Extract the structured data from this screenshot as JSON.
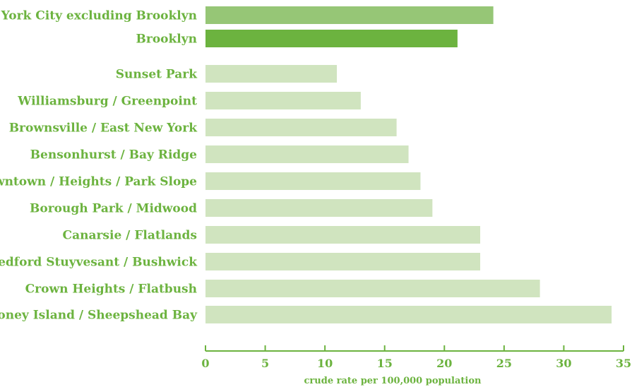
{
  "chart_data": {
    "type": "bar",
    "orientation": "horizontal",
    "xlabel": "crude rate per 100,000 population",
    "xlim": [
      0,
      35
    ],
    "xticks": [
      0,
      5,
      10,
      15,
      20,
      25,
      30,
      35
    ],
    "grid": false,
    "categories": [
      "New York City excluding Brooklyn",
      "Brooklyn",
      "Sunset Park",
      "Williamsburg / Greenpoint",
      "Brownsville / East New York",
      "Bensonhurst / Bay Ridge",
      "Downtown / Heights / Park Slope",
      "Borough Park / Midwood",
      "Canarsie / Flatlands",
      "Bedford Stuyvesant / Bushwick",
      "Crown Heights / Flatbush",
      "Coney Island / Sheepshead Bay"
    ],
    "values": [
      24.1,
      21.1,
      11.0,
      13.0,
      16.0,
      17.0,
      18.0,
      19.0,
      23.0,
      23.0,
      28.0,
      34.0
    ],
    "colors": [
      "#96c676",
      "#6cb33f",
      "#d0e4bf",
      "#d0e4bf",
      "#d0e4bf",
      "#d0e4bf",
      "#d0e4bf",
      "#d0e4bf",
      "#d0e4bf",
      "#d0e4bf",
      "#d0e4bf",
      "#d0e4bf"
    ],
    "text_color": "#6cb33f"
  }
}
